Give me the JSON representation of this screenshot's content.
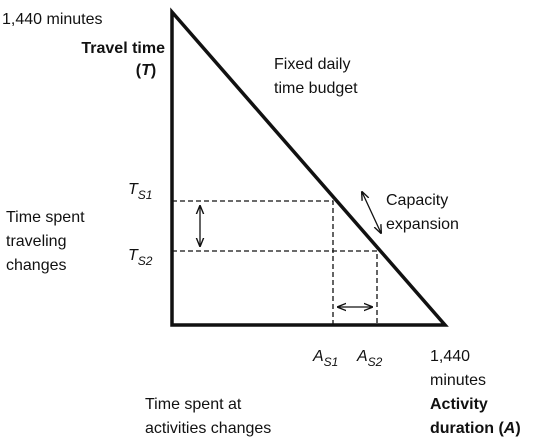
{
  "y_axis": {
    "max_label": "1,440 minutes",
    "title": "Travel time",
    "symbol_open": "(",
    "symbol": "T",
    "symbol_close": ")"
  },
  "budget_label": [
    "Fixed daily",
    "time budget"
  ],
  "travel_levels": [
    {
      "main": "T",
      "sub": "S1"
    },
    {
      "main": "T",
      "sub": "S2"
    }
  ],
  "travel_change_label": [
    "Time spent",
    "traveling",
    "changes"
  ],
  "capacity_label": [
    "Capacity",
    "expansion"
  ],
  "activity_levels": [
    {
      "main": "A",
      "sub": "S1"
    },
    {
      "main": "A",
      "sub": "S2"
    }
  ],
  "x_axis": {
    "max_label": [
      "1,440",
      "minutes"
    ],
    "title": [
      "Activity",
      "duration ("
    ],
    "symbol": "A",
    "symbol_close": ")"
  },
  "activity_change_label": [
    "Time spent at",
    "activities changes"
  ]
}
